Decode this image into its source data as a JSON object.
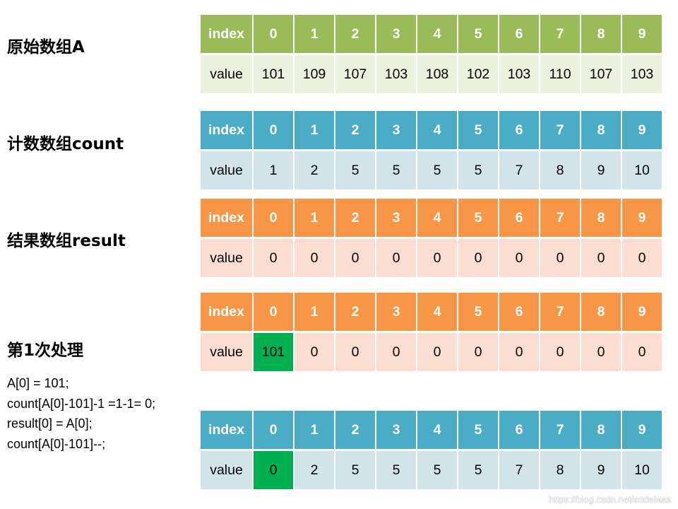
{
  "labels": {
    "original": "原始数组A",
    "count": "计数数组count",
    "result": "结果数组result",
    "step1": "第1次处理"
  },
  "code_lines": [
    "A[0] = 101;",
    "count[A[0]-101]-1 =1-1= 0;",
    "result[0] = A[0];",
    "count[A[0]-101]--;"
  ],
  "colors": {
    "green_header": "#9bbb59",
    "green_value": "#ebf1de",
    "blue_header": "#4bacc6",
    "blue_value": "#d2e4ea",
    "orange_header": "#f79646",
    "orange_value": "#fbdcd0",
    "highlight": "#00b050"
  },
  "tables": [
    {
      "id": "array-a",
      "theme": "green",
      "header_label": "index",
      "value_label": "value",
      "indices": [
        "0",
        "1",
        "2",
        "3",
        "4",
        "5",
        "6",
        "7",
        "8",
        "9"
      ],
      "values": [
        "101",
        "109",
        "107",
        "103",
        "108",
        "102",
        "103",
        "110",
        "107",
        "103"
      ],
      "highlight_index": -1
    },
    {
      "id": "count-array",
      "theme": "blue",
      "header_label": "index",
      "value_label": "value",
      "indices": [
        "0",
        "1",
        "2",
        "3",
        "4",
        "5",
        "6",
        "7",
        "8",
        "9"
      ],
      "values": [
        "1",
        "2",
        "5",
        "5",
        "5",
        "5",
        "7",
        "8",
        "9",
        "10"
      ],
      "highlight_index": -1
    },
    {
      "id": "result-array",
      "theme": "orange",
      "header_label": "index",
      "value_label": "value",
      "indices": [
        "0",
        "1",
        "2",
        "3",
        "4",
        "5",
        "6",
        "7",
        "8",
        "9"
      ],
      "values": [
        "0",
        "0",
        "0",
        "0",
        "0",
        "0",
        "0",
        "0",
        "0",
        "0"
      ],
      "highlight_index": -1
    },
    {
      "id": "result-after-step1",
      "theme": "orange",
      "header_label": "index",
      "value_label": "value",
      "indices": [
        "0",
        "1",
        "2",
        "3",
        "4",
        "5",
        "6",
        "7",
        "8",
        "9"
      ],
      "values": [
        "101",
        "0",
        "0",
        "0",
        "0",
        "0",
        "0",
        "0",
        "0",
        "0"
      ],
      "highlight_index": 0
    },
    {
      "id": "count-after-step1",
      "theme": "blue",
      "header_label": "index",
      "value_label": "value",
      "indices": [
        "0",
        "1",
        "2",
        "3",
        "4",
        "5",
        "6",
        "7",
        "8",
        "9"
      ],
      "values": [
        "0",
        "2",
        "5",
        "5",
        "5",
        "5",
        "7",
        "8",
        "9",
        "10"
      ],
      "highlight_index": 0
    }
  ],
  "watermark": "https://blog.csdn.net/codeMas"
}
